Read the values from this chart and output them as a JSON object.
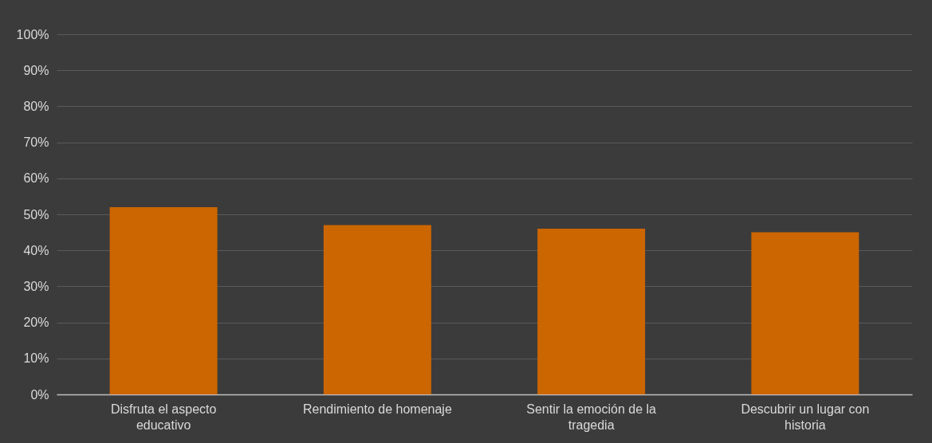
{
  "chart_data": {
    "type": "bar",
    "categories": [
      "Disfruta el aspecto educativo",
      "Rendimiento de homenaje",
      "Sentir la emoción de la tragedia",
      "Descubrir un lugar con historia"
    ],
    "values": [
      52,
      47,
      46,
      45
    ],
    "color": "#cc6600",
    "ylim": [
      0,
      100
    ],
    "yticks": [
      {
        "value": 0,
        "label": "0%"
      },
      {
        "value": 10,
        "label": "10%"
      },
      {
        "value": 20,
        "label": "20%"
      },
      {
        "value": 30,
        "label": "30%"
      },
      {
        "value": 40,
        "label": "40%"
      },
      {
        "value": 50,
        "label": "50%"
      },
      {
        "value": 60,
        "label": "60%"
      },
      {
        "value": 70,
        "label": "70%"
      },
      {
        "value": 80,
        "label": "80%"
      },
      {
        "value": 90,
        "label": "90%"
      },
      {
        "value": 100,
        "label": "100%"
      }
    ],
    "grid": "y"
  }
}
